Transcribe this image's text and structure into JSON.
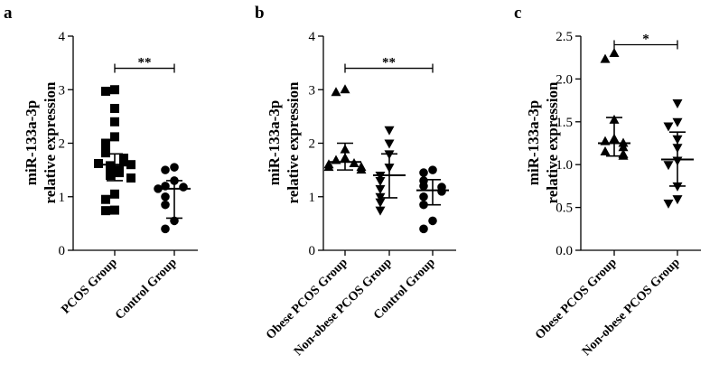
{
  "chart_data": [
    {
      "panel": "a",
      "type": "scatter",
      "ylabel": [
        "miR-133a-3p",
        "relative expression"
      ],
      "ylim": [
        0,
        4
      ],
      "yticks": [
        "0",
        "1",
        "2",
        "3",
        "4"
      ],
      "categories": [
        "PCOS Group",
        "Control Group"
      ],
      "markers": [
        "square",
        "circle"
      ],
      "series": [
        {
          "values": [
            3.0,
            2.97,
            2.65,
            2.4,
            2.12,
            2.0,
            1.85,
            1.82,
            1.72,
            1.68,
            1.65,
            1.62,
            1.6,
            1.58,
            1.55,
            1.52,
            1.5,
            1.48,
            1.45,
            1.4,
            1.35,
            1.05,
            0.95,
            0.75,
            0.74
          ],
          "median": 1.6,
          "err": [
            1.3,
            1.8
          ]
        },
        {
          "values": [
            1.55,
            1.5,
            1.3,
            1.2,
            1.18,
            1.15,
            1.0,
            0.85,
            0.55,
            0.4
          ],
          "median": 1.15,
          "err": [
            0.6,
            1.3
          ]
        }
      ],
      "significance": {
        "from": 0,
        "to": 1,
        "label": "**",
        "y": 3.4
      }
    },
    {
      "panel": "b",
      "type": "scatter",
      "ylabel": [
        "miR-133a-3p",
        "relative expression"
      ],
      "ylim": [
        0,
        4
      ],
      "yticks": [
        "0",
        "1",
        "2",
        "3",
        "4"
      ],
      "categories": [
        "Obese PCOS Group",
        "Non-obese PCOS Group",
        "Control Group"
      ],
      "markers": [
        "triangle-up",
        "triangle-down",
        "circle"
      ],
      "series": [
        {
          "values": [
            3.0,
            2.95,
            1.88,
            1.72,
            1.68,
            1.62,
            1.6,
            1.55,
            1.55,
            1.5
          ],
          "median": 1.65,
          "err": [
            1.5,
            2.0
          ]
        },
        {
          "values": [
            2.25,
            2.0,
            1.8,
            1.55,
            1.4,
            1.3,
            1.15,
            1.0,
            0.9,
            0.75
          ],
          "median": 1.4,
          "err": [
            0.98,
            1.8
          ]
        },
        {
          "values": [
            1.5,
            1.45,
            1.3,
            1.2,
            1.18,
            1.1,
            1.0,
            0.85,
            0.55,
            0.4
          ],
          "median": 1.12,
          "err": [
            0.85,
            1.32
          ]
        }
      ],
      "significance": {
        "from": 0,
        "to": 2,
        "label": "**",
        "y": 3.4
      }
    },
    {
      "panel": "c",
      "type": "scatter",
      "ylabel": [
        "miR-133a-3p",
        "relative expression"
      ],
      "ylim": [
        0,
        2.5
      ],
      "yticks": [
        "0.0",
        "0.5",
        "1.0",
        "1.5",
        "2.0",
        "2.5"
      ],
      "categories": [
        "Obese PCOS Group",
        "Non-obese PCOS Group"
      ],
      "markers": [
        "triangle-up",
        "triangle-down"
      ],
      "series": [
        {
          "values": [
            2.3,
            2.23,
            1.52,
            1.3,
            1.27,
            1.25,
            1.2,
            1.15,
            1.12,
            1.1
          ],
          "median": 1.25,
          "err": [
            1.1,
            1.55
          ]
        },
        {
          "values": [
            1.72,
            1.5,
            1.45,
            1.3,
            1.2,
            1.05,
            1.0,
            0.75,
            0.6,
            0.55
          ],
          "median": 1.06,
          "err": [
            0.75,
            1.38
          ]
        }
      ],
      "significance": {
        "from": 0,
        "to": 1,
        "label": "*",
        "y": 2.4
      }
    }
  ]
}
